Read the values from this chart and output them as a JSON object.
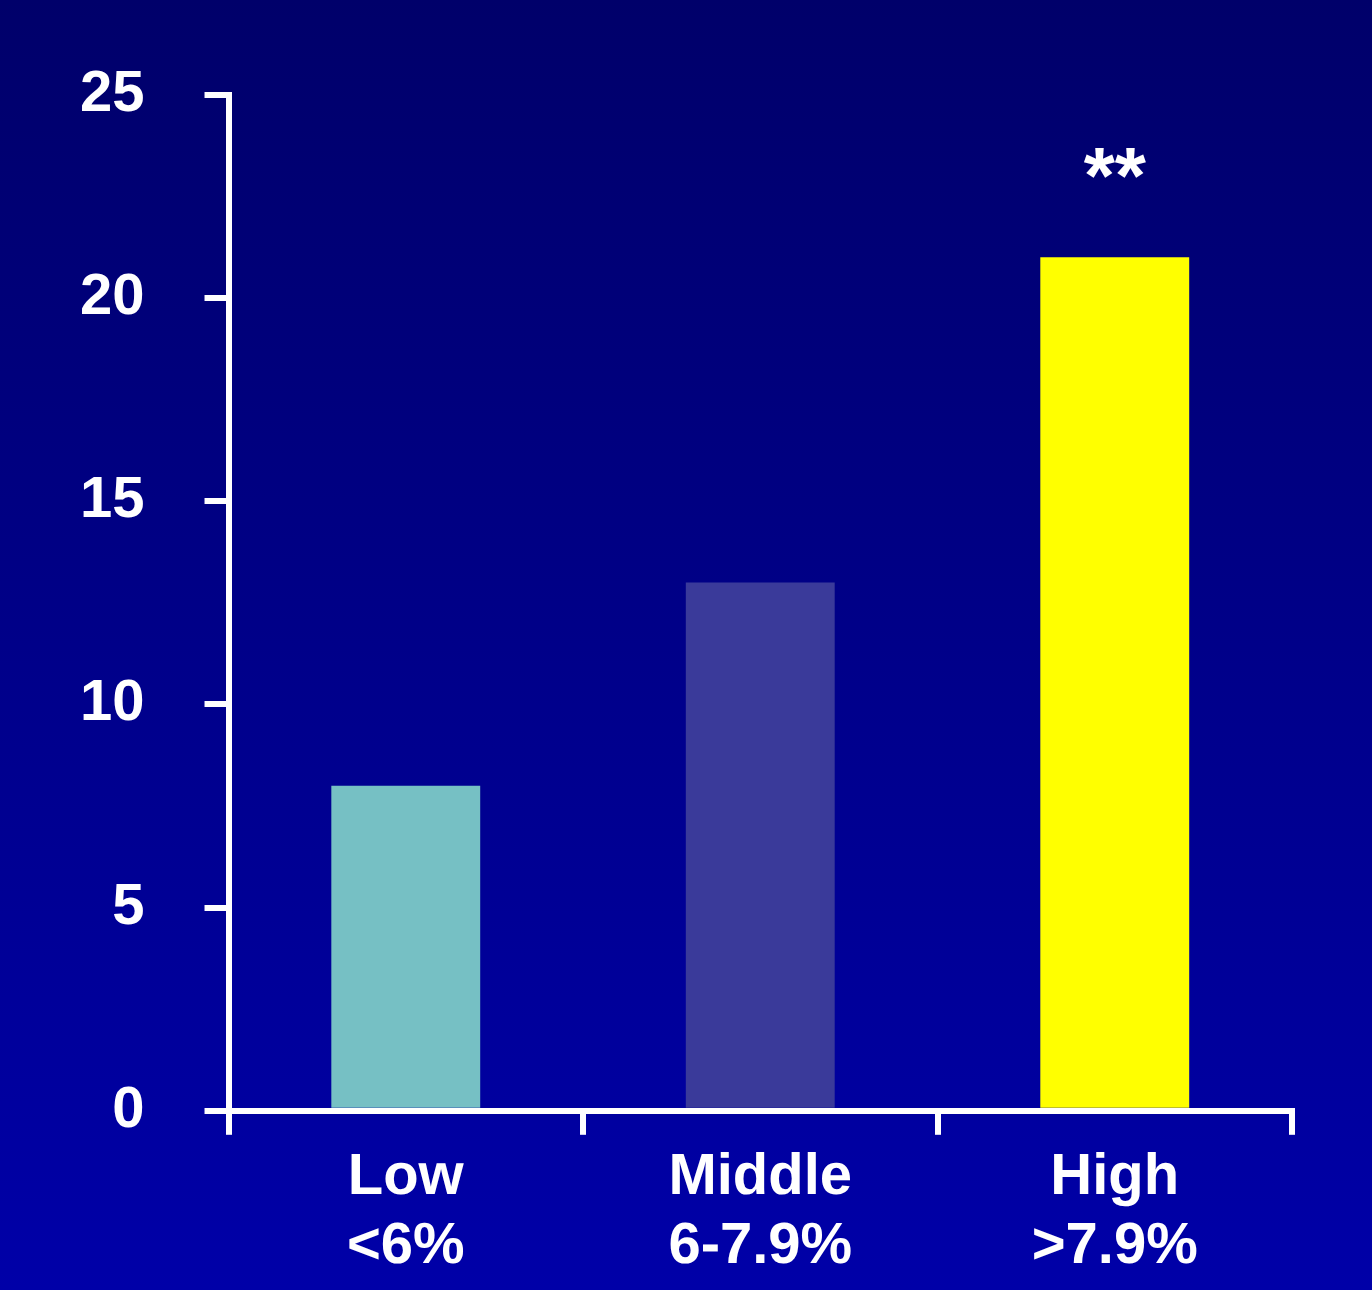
{
  "chart_data": {
    "type": "bar",
    "categories": [
      "Low\n<6%",
      "Middle\n6-7.9%",
      "High\n>7.9%"
    ],
    "values": [
      8,
      13,
      21
    ],
    "colors": [
      "#76c0c4",
      "#3a3a9a",
      "#ffff00"
    ],
    "ylim": [
      0,
      25
    ],
    "yticks": [
      0,
      5,
      10,
      15,
      20,
      25
    ],
    "grid": false,
    "legend": false,
    "annotations": [
      "**"
    ]
  }
}
